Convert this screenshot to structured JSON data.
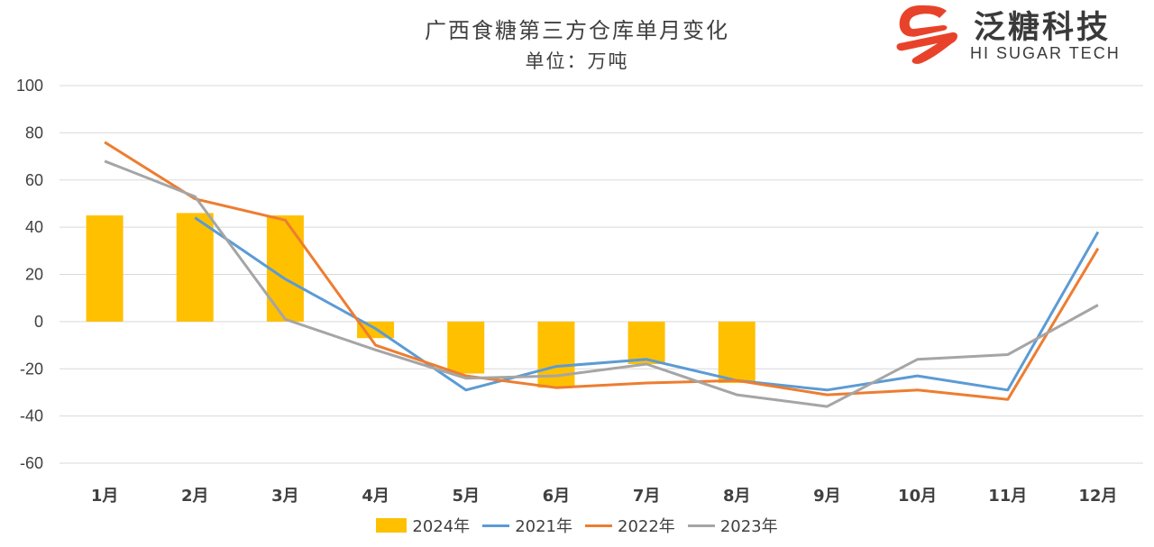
{
  "logo": {
    "name": "泛糖科技",
    "english": "HI SUGAR TECH"
  },
  "chart_data": {
    "type": "bar",
    "title": "广西食糖第三方仓库单月变化",
    "subtitle": "单位：万吨",
    "categories": [
      "1月",
      "2月",
      "3月",
      "4月",
      "5月",
      "6月",
      "7月",
      "8月",
      "9月",
      "10月",
      "11月",
      "12月"
    ],
    "ylim": [
      -60,
      100
    ],
    "yticks": [
      100,
      80,
      60,
      40,
      20,
      0,
      -20,
      -40,
      -60
    ],
    "grid": true,
    "legend_position": "bottom",
    "series": [
      {
        "name": "2024年",
        "kind": "bar",
        "color": "#FFC000",
        "values": [
          45,
          46,
          45,
          -7,
          -22,
          -28,
          -18,
          -26,
          null,
          null,
          null,
          null
        ]
      },
      {
        "name": "2021年",
        "kind": "line",
        "color": "#5B9BD5",
        "values": [
          null,
          44,
          18,
          -3,
          -29,
          -19,
          -16,
          -25,
          -29,
          -23,
          -29,
          38
        ]
      },
      {
        "name": "2022年",
        "kind": "line",
        "color": "#ED7D31",
        "values": [
          76,
          52,
          43,
          -10,
          -23,
          -28,
          -26,
          -25,
          -31,
          -29,
          -33,
          31
        ]
      },
      {
        "name": "2023年",
        "kind": "line",
        "color": "#A5A5A5",
        "values": [
          68,
          53,
          1,
          -12,
          -24,
          -23,
          -18,
          -31,
          -36,
          -16,
          -14,
          7
        ]
      }
    ]
  }
}
